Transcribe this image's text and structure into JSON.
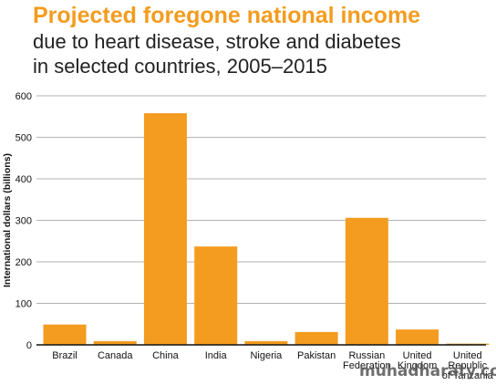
{
  "chart_data": {
    "type": "bar",
    "title": "Projected foregone national income",
    "subtitle": [
      "due to heart disease, stroke and diabetes",
      "in selected countries, 2005–2015"
    ],
    "xlabel": "",
    "ylabel": "International dollars (billions)",
    "ylim": [
      0,
      600
    ],
    "yticks": [
      "0",
      "100",
      "200",
      "300",
      "400",
      "500",
      "600"
    ],
    "grid": true,
    "legend": "none",
    "categories": [
      [
        "Brazil"
      ],
      [
        "Canada"
      ],
      [
        "China"
      ],
      [
        "India"
      ],
      [
        "Nigeria"
      ],
      [
        "Pakistan"
      ],
      [
        "Russian",
        "Federation"
      ],
      [
        "United",
        "Kingdom"
      ],
      [
        "United",
        "Republic",
        "of Tanzania"
      ]
    ],
    "values": [
      49,
      9,
      558,
      237,
      9,
      31,
      306,
      37,
      3
    ],
    "colors": {
      "title": "#F39C1F",
      "bar": "#F39C1F",
      "grid": "#9a9a9a",
      "axis": "#111111"
    }
  },
  "watermark": "muhadharaty.com"
}
